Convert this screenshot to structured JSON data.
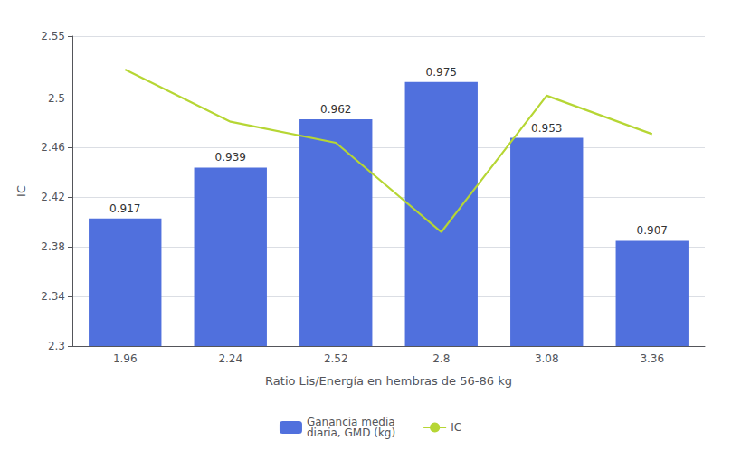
{
  "chart_data": {
    "type": "bar",
    "xlabel": "Ratio Lis/Energía en hembras de 56-86 kg",
    "ylabel": "IC",
    "categories": [
      "1.96",
      "2.24",
      "2.52",
      "2.8",
      "3.08",
      "3.36"
    ],
    "series": [
      {
        "name": "Ganancia media\ndiaria, GMD (kg)",
        "type": "bar",
        "values": [
          2.403,
          2.444,
          2.483,
          2.513,
          2.468,
          2.385
        ]
      },
      {
        "name": "IC",
        "type": "line",
        "marker": "none",
        "values": [
          2.523,
          2.481,
          2.464,
          2.392,
          2.502,
          2.471
        ]
      }
    ],
    "annotations": [
      {
        "x": "1.96",
        "text": "0.917"
      },
      {
        "x": "2.24",
        "text": "0.939"
      },
      {
        "x": "2.52",
        "text": "0.962"
      },
      {
        "x": "2.8",
        "text": "0.975"
      },
      {
        "x": "3.08",
        "text": "0.953"
      },
      {
        "x": "3.36",
        "text": "0.907"
      }
    ],
    "ylim": [
      2.3,
      2.55
    ],
    "yticks": [
      2.3,
      2.34,
      2.38,
      2.42,
      2.46,
      2.5,
      2.55
    ],
    "grid": true,
    "legend": "bottom"
  }
}
